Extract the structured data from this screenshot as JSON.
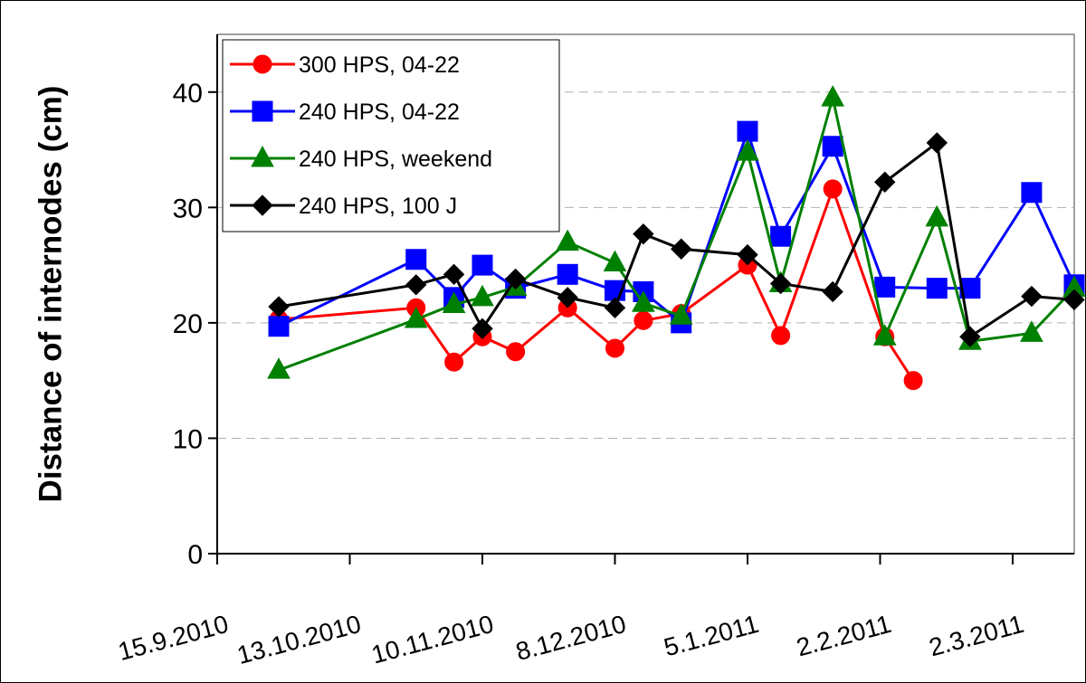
{
  "chart_data": {
    "type": "line",
    "ylabel": "Distance of internodes (cm)",
    "xlim": [
      "15.9.2010",
      "15.3.2011"
    ],
    "xticks": [
      "15.9.2010",
      "13.10.2010",
      "10.11.2010",
      "8.12.2010",
      "5.1.2011",
      "2.2.2011",
      "2.3.2011"
    ],
    "ylim": [
      0,
      45
    ],
    "yticks": [
      0,
      10,
      20,
      30,
      40
    ],
    "grid": true,
    "legend": "upper left",
    "series": [
      {
        "name": "300 HPS, 04-22",
        "color": "#ff0000",
        "marker": "circle",
        "x": [
          "28.9.2010",
          "27.10.2010",
          "4.11.2010",
          "10.11.2010",
          "17.11.2010",
          "28.11.2010",
          "8.12.2010",
          "14.12.2010",
          "22.12.2010",
          "5.1.2011",
          "12.1.2011",
          "23.1.2011",
          "3.2.2011",
          "9.2.2011"
        ],
        "values": [
          20.3,
          21.3,
          16.6,
          18.8,
          17.5,
          21.3,
          17.8,
          20.2,
          20.8,
          25.0,
          18.9,
          31.6,
          18.8,
          15.0
        ]
      },
      {
        "name": "240 HPS, 04-22",
        "color": "#0000ff",
        "marker": "square",
        "x": [
          "28.9.2010",
          "27.10.2010",
          "4.11.2010",
          "10.11.2010",
          "17.11.2010",
          "28.11.2010",
          "8.12.2010",
          "14.12.2010",
          "22.12.2010",
          "5.1.2011",
          "12.1.2011",
          "23.1.2011",
          "3.2.2011",
          "14.2.2011",
          "21.2.2011",
          "6.3.2011",
          "15.3.2011"
        ],
        "values": [
          19.7,
          25.5,
          22.2,
          25.0,
          23.0,
          24.2,
          22.8,
          22.7,
          20.0,
          36.6,
          27.5,
          35.3,
          23.1,
          23.0,
          23.0,
          31.3,
          23.3
        ]
      },
      {
        "name": "240 HPS, weekend",
        "color": "#008000",
        "marker": "triangle",
        "x": [
          "28.9.2010",
          "27.10.2010",
          "4.11.2010",
          "10.11.2010",
          "17.11.2010",
          "28.11.2010",
          "8.12.2010",
          "14.12.2010",
          "22.12.2010",
          "5.1.2011",
          "12.1.2011",
          "23.1.2011",
          "3.2.2011",
          "14.2.2011",
          "21.2.2011",
          "6.3.2011",
          "15.3.2011"
        ],
        "values": [
          15.9,
          20.3,
          21.6,
          22.2,
          23.1,
          27.0,
          25.2,
          21.7,
          20.6,
          34.8,
          23.4,
          39.5,
          18.8,
          29.1,
          18.4,
          19.1,
          23.0
        ]
      },
      {
        "name": "240 HPS, 100 J",
        "color": "#000000",
        "marker": "diamond",
        "x": [
          "28.9.2010",
          "27.10.2010",
          "4.11.2010",
          "10.11.2010",
          "17.11.2010",
          "28.11.2010",
          "8.12.2010",
          "14.12.2010",
          "22.12.2010",
          "5.1.2011",
          "12.1.2011",
          "23.1.2011",
          "3.2.2011",
          "14.2.2011",
          "21.2.2011",
          "6.3.2011",
          "15.3.2011"
        ],
        "values": [
          21.4,
          23.3,
          24.2,
          19.5,
          23.8,
          22.2,
          21.3,
          27.7,
          26.4,
          25.9,
          23.4,
          22.7,
          32.2,
          35.6,
          18.8,
          22.3,
          22.0
        ]
      }
    ]
  }
}
